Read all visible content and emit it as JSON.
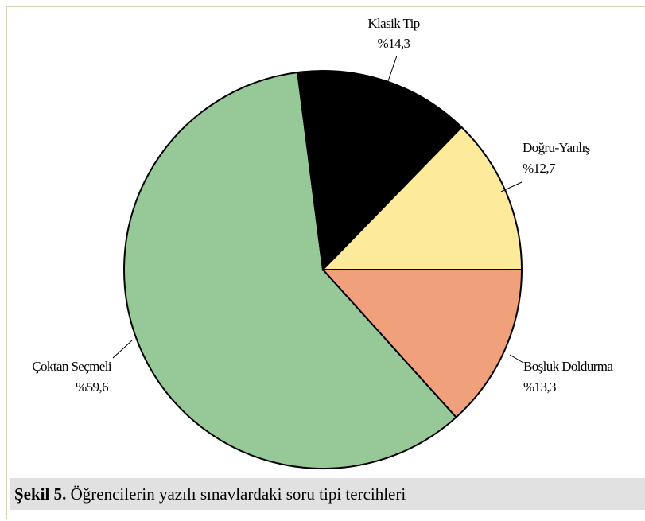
{
  "chart_data": {
    "type": "pie",
    "categories": [
      "Boşluk Doldurma",
      "Çoktan Seçmeli",
      "Klasik Tip",
      "Doğru-Yanlış"
    ],
    "values": [
      13.3,
      59.6,
      14.3,
      12.7
    ],
    "value_labels": [
      "%13,3",
      "%59,6",
      "%14,3",
      "%12,7"
    ],
    "colors": [
      "#f0a07a",
      "#96c898",
      "#000000",
      "#fdeb9b"
    ]
  },
  "caption": {
    "label": "Şekil 5.",
    "text": "Öğrencilerin yazılı sınavlardaki soru tipi tercihleri"
  }
}
